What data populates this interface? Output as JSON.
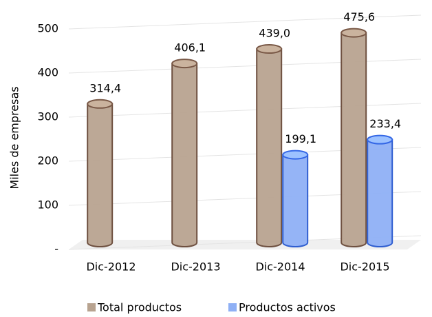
{
  "chart_data": {
    "type": "cylinder",
    "y_label": "Miles de empresas",
    "categories": [
      "Dic-2012",
      "Dic-2013",
      "Dic-2014",
      "Dic-2015"
    ],
    "series": [
      {
        "name": "Total productos",
        "color": "#b8a390",
        "values": [
          314.4,
          406.1,
          439.0,
          475.6
        ],
        "value_labels": [
          "314,4",
          "406,1",
          "439,0",
          "475,6"
        ]
      },
      {
        "name": "Productos activos",
        "color": "#8fb0f5",
        "values": [
          null,
          null,
          199.1,
          233.4
        ],
        "value_labels": [
          null,
          null,
          "199,1",
          "233,4"
        ]
      }
    ],
    "ylim": [
      0,
      500
    ],
    "yticks": [
      {
        "value": 0,
        "label": "-"
      },
      100,
      200,
      300,
      400,
      500
    ],
    "grid": true
  }
}
